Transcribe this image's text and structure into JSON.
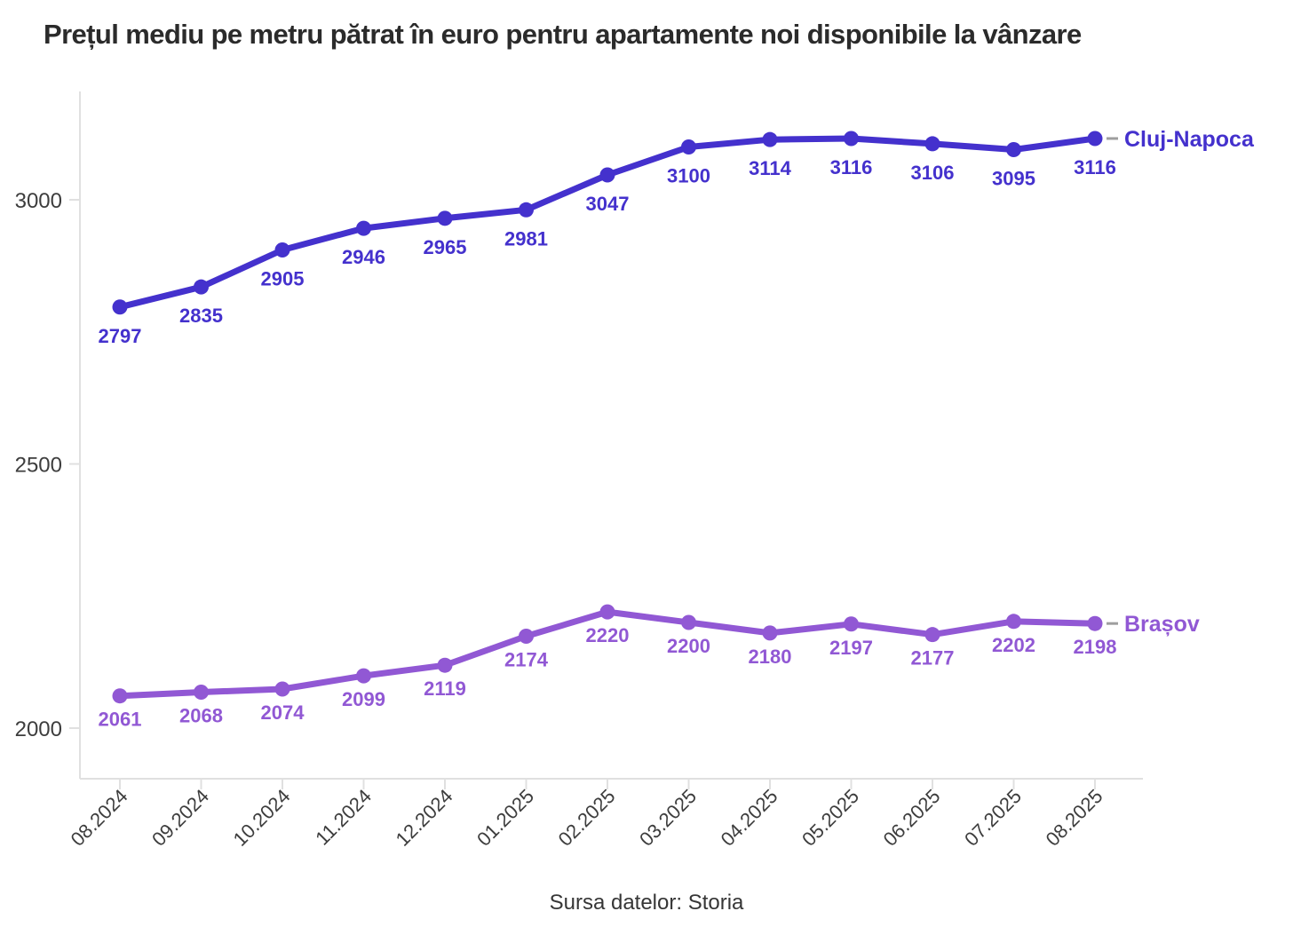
{
  "title": "Prețul mediu pe metru pătrat în euro pentru apartamente noi disponibile la vânzare",
  "source": "Sursa datelor: Storia",
  "colors": {
    "axis_line": "#e0e0e0",
    "axis_text": "#3d3d3d",
    "legend_dash": "#9e9e9e",
    "title_text": "#2b2b2b",
    "cluj_napoca": "#4431cd",
    "brasov": "#9158d4"
  },
  "chart_data": {
    "type": "line",
    "title": "Prețul mediu pe metru pătrat în euro pentru apartamente noi disponibile la vânzare",
    "categories": [
      "08.2024",
      "09.2024",
      "10.2024",
      "11.2024",
      "12.2024",
      "01.2025",
      "02.2025",
      "03.2025",
      "04.2025",
      "05.2025",
      "06.2025",
      "07.2025",
      "08.2025"
    ],
    "series": [
      {
        "name": "Cluj-Napoca",
        "color": "#4431cd",
        "values": [
          2797,
          2835,
          2905,
          2946,
          2965,
          2981,
          3047,
          3100,
          3114,
          3116,
          3106,
          3095,
          3116
        ]
      },
      {
        "name": "Brașov",
        "color": "#9158d4",
        "values": [
          2061,
          2068,
          2074,
          2099,
          2119,
          2174,
          2220,
          2200,
          2180,
          2197,
          2177,
          2202,
          2198
        ]
      }
    ],
    "yticks": [
      2000,
      2500,
      3000
    ],
    "ylim": [
      1907,
      3210
    ],
    "grid": false,
    "legend_position": "line-end",
    "data_labels": true,
    "source": "Sursa datelor: Storia"
  }
}
